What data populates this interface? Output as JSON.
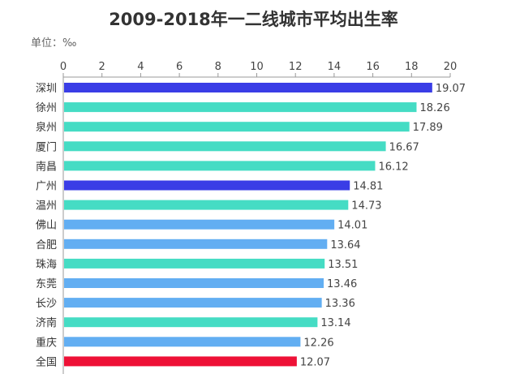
{
  "chart_data": {
    "type": "bar",
    "orientation": "horizontal",
    "title": "2009-2018年一二线城市平均出生率",
    "unit_label": "单位：‰",
    "xlim": [
      0,
      20
    ],
    "x_ticks": [
      "0",
      "2",
      "4",
      "6",
      "8",
      "10",
      "12",
      "14",
      "16",
      "18",
      "20"
    ],
    "grid": false,
    "categories": [
      "深圳",
      "徐州",
      "泉州",
      "厦门",
      "南昌",
      "广州",
      "温州",
      "佛山",
      "合肥",
      "珠海",
      "东莞",
      "长沙",
      "济南",
      "重庆",
      "全国"
    ],
    "values": [
      19.07,
      18.26,
      17.89,
      16.67,
      16.12,
      14.81,
      14.73,
      14.01,
      13.64,
      13.51,
      13.46,
      13.36,
      13.14,
      12.26,
      12.07
    ],
    "value_labels": [
      "19.07",
      "18.26",
      "17.89",
      "16.67",
      "16.12",
      "14.81",
      "14.73",
      "14.01",
      "13.64",
      "13.51",
      "13.46",
      "13.36",
      "13.14",
      "12.26",
      "12.07"
    ],
    "bar_colors": [
      "#3a3de6",
      "#45dcc4",
      "#45dcc4",
      "#45dcc4",
      "#45dcc4",
      "#3a3de6",
      "#45dcc4",
      "#62aef2",
      "#62aef2",
      "#45dcc4",
      "#62aef2",
      "#62aef2",
      "#45dcc4",
      "#62aef2",
      "#ee1136"
    ],
    "label_colors": [
      "#333333",
      "#333333",
      "#333333",
      "#333333",
      "#333333",
      "#333333",
      "#333333",
      "#333333",
      "#333333",
      "#333333",
      "#333333",
      "#333333",
      "#333333",
      "#333333",
      "#ee1136"
    ]
  }
}
